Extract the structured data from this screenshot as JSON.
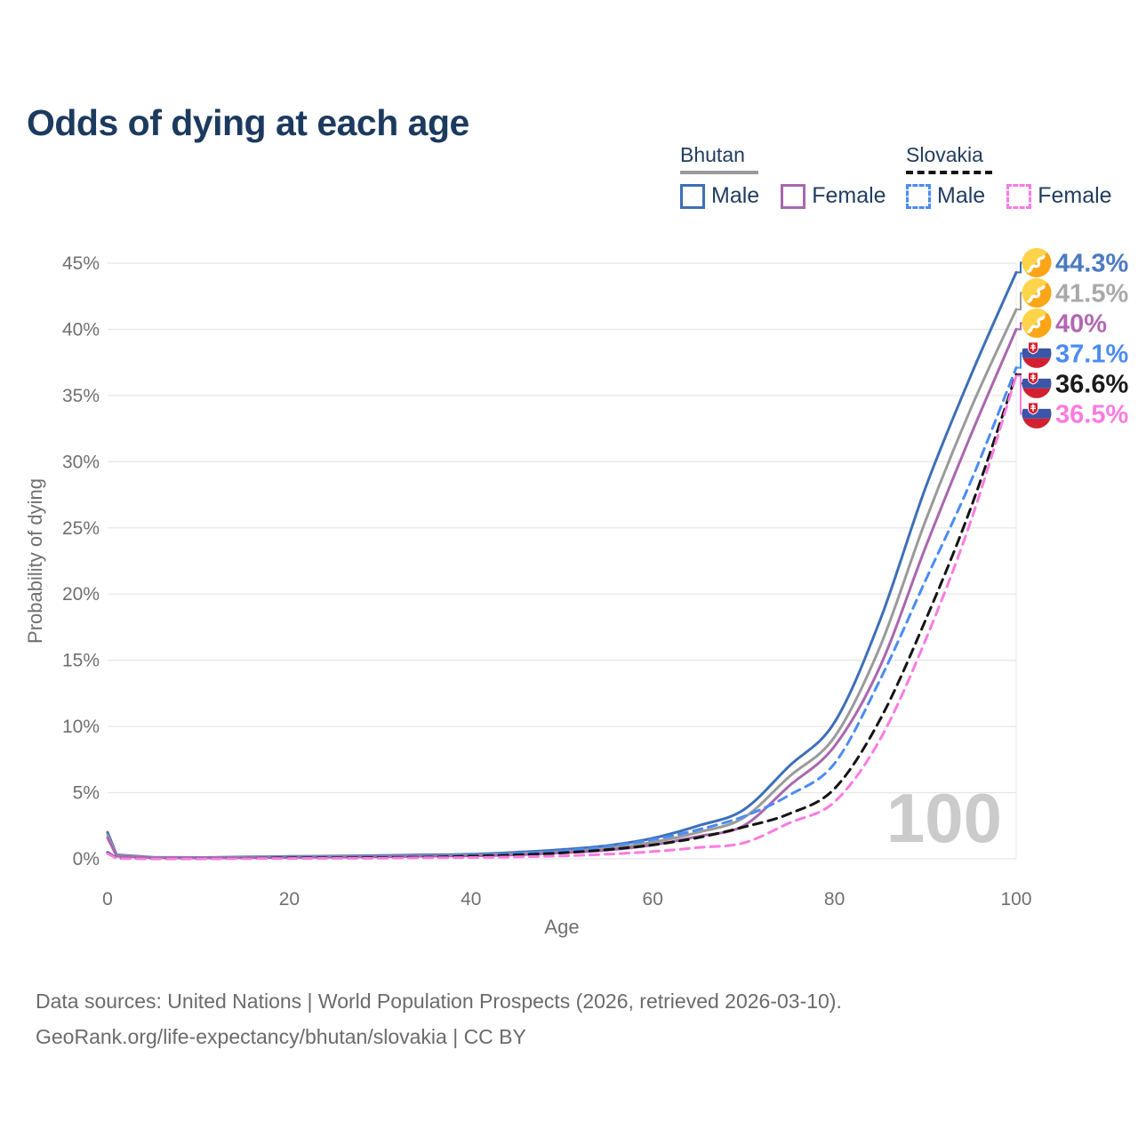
{
  "title": "Odds of dying at each age",
  "legend": {
    "groups": [
      {
        "name": "Bhutan",
        "line_style": "solid",
        "underline_color": "#9a9a9a",
        "items": [
          {
            "label": "Male",
            "color": "#3d6fb6"
          },
          {
            "label": "Female",
            "color": "#a967ae"
          }
        ]
      },
      {
        "name": "Slovakia",
        "line_style": "dashed",
        "underline_color": "#141414",
        "items": [
          {
            "label": "Male",
            "color": "#4b8bf5"
          },
          {
            "label": "Female",
            "color": "#fb7be0"
          }
        ]
      }
    ]
  },
  "chart_data": {
    "type": "line",
    "title": "Odds of dying at each age",
    "xlabel": "Age",
    "ylabel": "Probability of dying",
    "xlim": [
      0,
      100
    ],
    "ylim": [
      0,
      45
    ],
    "x_ticks": [
      0,
      20,
      40,
      60,
      80,
      100
    ],
    "y_ticks": [
      "0%",
      "5%",
      "10%",
      "15%",
      "20%",
      "25%",
      "30%",
      "35%",
      "40%",
      "45%"
    ],
    "grid": "horizontal",
    "legend_position": "top-right",
    "watermark": "100",
    "ages": [
      0,
      1,
      5,
      10,
      15,
      20,
      25,
      30,
      35,
      40,
      45,
      50,
      55,
      60,
      65,
      70,
      75,
      80,
      85,
      90,
      95,
      100
    ],
    "series": [
      {
        "name": "Bhutan Male",
        "country": "Bhutan",
        "sex": "Male",
        "flag": "bhutan",
        "color": "#3d6fb6",
        "dash": "solid",
        "end_label": "44.3%",
        "end_label_color": "#4a7ac2",
        "values": [
          2.0,
          0.3,
          0.12,
          0.1,
          0.14,
          0.18,
          0.21,
          0.25,
          0.3,
          0.35,
          0.5,
          0.7,
          1.0,
          1.55,
          2.5,
          3.7,
          7.0,
          10.3,
          18.0,
          28.0,
          36.5,
          44.3
        ]
      },
      {
        "name": "Bhutan Both",
        "country": "Bhutan",
        "sex": "Both",
        "flag": "bhutan",
        "color": "#9a9a9a",
        "dash": "solid",
        "end_label": "41.5%",
        "end_label_color": "#a9a9a9",
        "values": [
          1.8,
          0.25,
          0.1,
          0.08,
          0.11,
          0.14,
          0.17,
          0.2,
          0.24,
          0.28,
          0.4,
          0.55,
          0.8,
          1.25,
          2.0,
          3.1,
          6.2,
          9.2,
          16.0,
          25.5,
          34.0,
          41.5
        ]
      },
      {
        "name": "Bhutan Female",
        "country": "Bhutan",
        "sex": "Female",
        "flag": "bhutan",
        "color": "#a967ae",
        "dash": "solid",
        "end_label": "40%",
        "end_label_color": "#b168b1",
        "values": [
          1.6,
          0.2,
          0.08,
          0.07,
          0.09,
          0.1,
          0.13,
          0.15,
          0.2,
          0.22,
          0.3,
          0.45,
          0.65,
          1.05,
          1.7,
          2.5,
          5.5,
          8.5,
          14.5,
          23.5,
          32.0,
          40.0
        ]
      },
      {
        "name": "Slovakia Male",
        "country": "Slovakia",
        "sex": "Male",
        "flag": "slovakia",
        "color": "#4b8bf5",
        "dash": "dashed",
        "end_label": "37.1%",
        "end_label_color": "#4b8bf5",
        "values": [
          0.5,
          0.05,
          0.02,
          0.02,
          0.05,
          0.09,
          0.11,
          0.13,
          0.17,
          0.25,
          0.4,
          0.6,
          0.95,
          1.45,
          2.2,
          3.2,
          4.8,
          7.2,
          13.5,
          21.0,
          28.5,
          37.1
        ]
      },
      {
        "name": "Slovakia Both",
        "country": "Slovakia",
        "sex": "Both",
        "flag": "slovakia",
        "color": "#141414",
        "dash": "dashed",
        "end_label": "36.6%",
        "end_label_color": "#1a1a1a",
        "values": [
          0.45,
          0.04,
          0.015,
          0.015,
          0.035,
          0.07,
          0.08,
          0.1,
          0.13,
          0.2,
          0.3,
          0.45,
          0.7,
          1.05,
          1.6,
          2.4,
          3.4,
          5.3,
          10.5,
          18.0,
          26.5,
          36.6
        ]
      },
      {
        "name": "Slovakia Female",
        "country": "Slovakia",
        "sex": "Female",
        "flag": "slovakia",
        "color": "#fb7be0",
        "dash": "dashed",
        "end_label": "36.5%",
        "end_label_color": "#fb7be0",
        "values": [
          0.4,
          0.03,
          0.01,
          0.01,
          0.02,
          0.03,
          0.04,
          0.05,
          0.08,
          0.1,
          0.15,
          0.22,
          0.35,
          0.55,
          0.85,
          1.2,
          2.7,
          4.3,
          9.0,
          16.5,
          25.5,
          36.5
        ]
      }
    ]
  },
  "footer": {
    "line1": "Data sources: United Nations | World Population Prospects (2026, retrieved 2026-03-10).",
    "line2": "GeoRank.org/life-expectancy/bhutan/slovakia | CC BY"
  }
}
